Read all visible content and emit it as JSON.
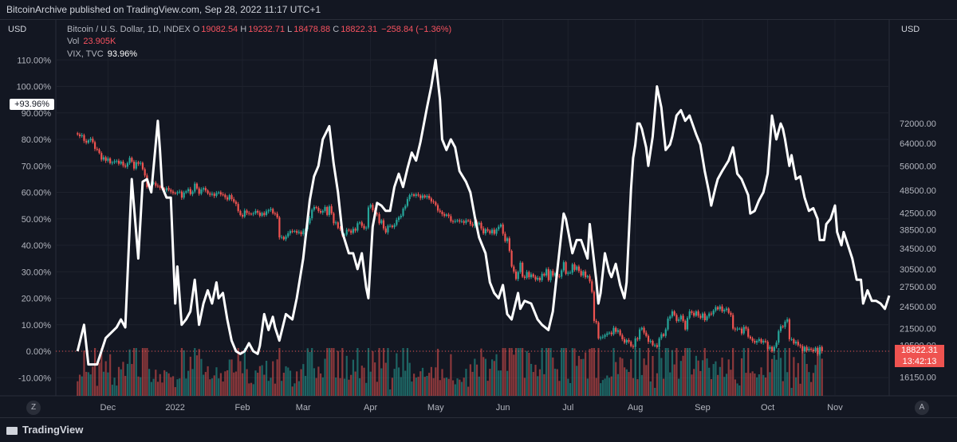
{
  "header": {
    "publisher_line": "BitcoinArchive published on TradingView.com, Sep 28, 2022 11:17 UTC+1"
  },
  "legend": {
    "symbol": "Bitcoin / U.S. Dollar, 1D, INDEX",
    "open_label": "O",
    "open": "19082.54",
    "high_label": "H",
    "high": "19232.71",
    "low_label": "L",
    "low": "18478.88",
    "close_label": "C",
    "close": "18822.31",
    "change": "−258.84 (−1.36%)",
    "vol_label": "Vol",
    "vol_value": "23.905K",
    "vix_label": "VIX, TVC",
    "vix_value": "93.96%"
  },
  "left_axis": {
    "currency": "USD",
    "vix_badge": "+93.96%"
  },
  "right_axis": {
    "currency": "USD",
    "price_badge": "18822.31",
    "countdown_badge": "13:42:13"
  },
  "footer": {
    "logo_text": "TradingView",
    "zoom_button": "Z",
    "auto_button": "A"
  },
  "colors": {
    "up": "#26a69a",
    "down": "#ef5350",
    "vix_line": "#ffffff",
    "background": "#131722",
    "grid": "#1e222d"
  },
  "chart_data": [
    {
      "type": "line",
      "name": "VIX, TVC",
      "note": "percent change line (left axis)",
      "ylim": [
        -15,
        120
      ],
      "y_ticks": [
        "110.00%",
        "100.00%",
        "90.00%",
        "80.00%",
        "70.00%",
        "60.00%",
        "50.00%",
        "40.00%",
        "30.00%",
        "20.00%",
        "10.00%",
        "0.00%",
        "-10.00%"
      ],
      "x_ticks": [
        "Dec",
        "2022",
        "Feb",
        "Mar",
        "Apr",
        "May",
        "Jun",
        "Jul",
        "Aug",
        "Sep",
        "Oct",
        "Nov"
      ],
      "x_tick_days": [
        14,
        45,
        76,
        104,
        135,
        165,
        196,
        226,
        257,
        288,
        318,
        349
      ],
      "x_range_days": [
        -10,
        374
      ],
      "points": [
        [
          0,
          0
        ],
        [
          3,
          10
        ],
        [
          5,
          -5
        ],
        [
          9,
          -5
        ],
        [
          13,
          5
        ],
        [
          18,
          9
        ],
        [
          20,
          12
        ],
        [
          22,
          9
        ],
        [
          25,
          65
        ],
        [
          28,
          35
        ],
        [
          30,
          64
        ],
        [
          32,
          65
        ],
        [
          34,
          60
        ],
        [
          36,
          78
        ],
        [
          37,
          87
        ],
        [
          38,
          76
        ],
        [
          39,
          62
        ],
        [
          41,
          58
        ],
        [
          43,
          58
        ],
        [
          45,
          18
        ],
        [
          46,
          32
        ],
        [
          48,
          10
        ],
        [
          50,
          12
        ],
        [
          52,
          15
        ],
        [
          54,
          27
        ],
        [
          56,
          10
        ],
        [
          58,
          18
        ],
        [
          60,
          23
        ],
        [
          62,
          18
        ],
        [
          64,
          26
        ],
        [
          65,
          20
        ],
        [
          67,
          22
        ],
        [
          69,
          12
        ],
        [
          71,
          4
        ],
        [
          73,
          0
        ],
        [
          75,
          -1
        ],
        [
          77,
          0
        ],
        [
          79,
          3
        ],
        [
          81,
          0
        ],
        [
          83,
          -1
        ],
        [
          84,
          2
        ],
        [
          86,
          14
        ],
        [
          88,
          8
        ],
        [
          90,
          13
        ],
        [
          91,
          9
        ],
        [
          93,
          4
        ],
        [
          96,
          14
        ],
        [
          99,
          12
        ],
        [
          101,
          20
        ],
        [
          104,
          35
        ],
        [
          107,
          57
        ],
        [
          109,
          66
        ],
        [
          111,
          70
        ],
        [
          113,
          80
        ],
        [
          116,
          85
        ],
        [
          118,
          71
        ],
        [
          120,
          60
        ],
        [
          122,
          45
        ],
        [
          125,
          37
        ],
        [
          127,
          37
        ],
        [
          129,
          31
        ],
        [
          131,
          37
        ],
        [
          133,
          24
        ],
        [
          134,
          20
        ],
        [
          136,
          47
        ],
        [
          138,
          56
        ],
        [
          140,
          55
        ],
        [
          142,
          53
        ],
        [
          144,
          53
        ],
        [
          146,
          62
        ],
        [
          148,
          67
        ],
        [
          150,
          62
        ],
        [
          152,
          69
        ],
        [
          154,
          75
        ],
        [
          156,
          72
        ],
        [
          158,
          79
        ],
        [
          161,
          92
        ],
        [
          163,
          100
        ],
        [
          165,
          110
        ],
        [
          167,
          95
        ],
        [
          168,
          80
        ],
        [
          170,
          76
        ],
        [
          172,
          80
        ],
        [
          174,
          77
        ],
        [
          176,
          68
        ],
        [
          179,
          64
        ],
        [
          181,
          60
        ],
        [
          183,
          51
        ],
        [
          185,
          43
        ],
        [
          188,
          37
        ],
        [
          190,
          26
        ],
        [
          192,
          22
        ],
        [
          194,
          20
        ],
        [
          196,
          25
        ],
        [
          198,
          14
        ],
        [
          200,
          12
        ],
        [
          203,
          22
        ],
        [
          204,
          16
        ],
        [
          206,
          19
        ],
        [
          209,
          18
        ],
        [
          212,
          12
        ],
        [
          214,
          10
        ],
        [
          217,
          8
        ],
        [
          219,
          15
        ],
        [
          221,
          30
        ],
        [
          223,
          45
        ],
        [
          224,
          52
        ],
        [
          225,
          50
        ],
        [
          228,
          37
        ],
        [
          230,
          42
        ],
        [
          232,
          42
        ],
        [
          235,
          35
        ],
        [
          236,
          48
        ],
        [
          239,
          27
        ],
        [
          240,
          18
        ],
        [
          241,
          22
        ],
        [
          243,
          37
        ],
        [
          245,
          30
        ],
        [
          246,
          28
        ],
        [
          248,
          33
        ],
        [
          250,
          25
        ],
        [
          252,
          20
        ],
        [
          253,
          26
        ],
        [
          255,
          61
        ],
        [
          256,
          73
        ],
        [
          257,
          78
        ],
        [
          258,
          86
        ],
        [
          259,
          86
        ],
        [
          260,
          84
        ],
        [
          262,
          77
        ],
        [
          263,
          70
        ],
        [
          265,
          81
        ],
        [
          267,
          100
        ],
        [
          269,
          92
        ],
        [
          270,
          84
        ],
        [
          271,
          76
        ],
        [
          273,
          78
        ],
        [
          274,
          81
        ],
        [
          276,
          89
        ],
        [
          278,
          91
        ],
        [
          280,
          87
        ],
        [
          282,
          89
        ],
        [
          285,
          82
        ],
        [
          287,
          78
        ],
        [
          289,
          68
        ],
        [
          291,
          60
        ],
        [
          292,
          55
        ],
        [
          294,
          62
        ],
        [
          295,
          65
        ],
        [
          297,
          68
        ],
        [
          300,
          72
        ],
        [
          302,
          77
        ],
        [
          304,
          67
        ],
        [
          306,
          65
        ],
        [
          309,
          59
        ],
        [
          310,
          52
        ],
        [
          312,
          53
        ],
        [
          314,
          57
        ],
        [
          316,
          60
        ],
        [
          318,
          67
        ],
        [
          320,
          89
        ],
        [
          322,
          80
        ],
        [
          324,
          86
        ],
        [
          325,
          84
        ],
        [
          326,
          80
        ],
        [
          328,
          70
        ],
        [
          329,
          74
        ],
        [
          331,
          65
        ],
        [
          333,
          66
        ],
        [
          335,
          58
        ],
        [
          337,
          53
        ],
        [
          339,
          54
        ],
        [
          341,
          50
        ],
        [
          342,
          42
        ],
        [
          344,
          42
        ],
        [
          345,
          48
        ],
        [
          347,
          50
        ],
        [
          349,
          55
        ],
        [
          350,
          45
        ],
        [
          352,
          40
        ],
        [
          353,
          45
        ],
        [
          355,
          40
        ],
        [
          357,
          35
        ],
        [
          359,
          27
        ],
        [
          361,
          27
        ],
        [
          362,
          18
        ],
        [
          364,
          23
        ],
        [
          366,
          19
        ],
        [
          368,
          19
        ],
        [
          370,
          18
        ],
        [
          372,
          16
        ],
        [
          374,
          21
        ]
      ],
      "end_value_label": "+93.96%"
    },
    {
      "type": "candlestick",
      "name": "Bitcoin / U.S. Dollar, 1D, INDEX",
      "note": "price candles (right axis, USD); approximate daily closes",
      "ylim": [
        14500,
        78000
      ],
      "y_ticks": [
        "72000.00",
        "64000.00",
        "56000.00",
        "48500.00",
        "42500.00",
        "38500.00",
        "34500.00",
        "30500.00",
        "27500.00",
        "24500.00",
        "21500.00",
        "19500.00",
        "16150.00"
      ],
      "start_open": 68000,
      "closes": [
        67500,
        66800,
        67200,
        65000,
        64300,
        65200,
        65800,
        64500,
        62000,
        61800,
        60500,
        58200,
        59000,
        57800,
        58600,
        57000,
        57200,
        57600,
        57800,
        56800,
        57500,
        56200,
        55800,
        57000,
        58800,
        57500,
        55200,
        57300,
        56800,
        57100,
        55000,
        53000,
        49500,
        50200,
        50500,
        50800,
        49900,
        49700,
        49300,
        49100,
        48500,
        49200,
        48700,
        48200,
        47800,
        47700,
        48000,
        48200,
        46500,
        47900,
        48300,
        48900,
        47500,
        48200,
        50500,
        49100,
        47600,
        48800,
        49200,
        48500,
        47700,
        47300,
        47600,
        47000,
        47800,
        48000,
        47400,
        47300,
        46600,
        46000,
        47200,
        46100,
        45400,
        44800,
        43000,
        42000,
        41600,
        43100,
        42500,
        42300,
        42200,
        42400,
        43000,
        42600,
        41800,
        42500,
        42000,
        42900,
        43200,
        43500,
        42400,
        42300,
        41400,
        36800,
        36900,
        36400,
        37000,
        37700,
        38200,
        38100,
        38200,
        37800,
        38000,
        37500,
        38300,
        38600,
        40000,
        41200,
        43300,
        44000,
        43800,
        43000,
        42600,
        43000,
        44000,
        42000,
        44200,
        42400,
        40000,
        40200,
        38900,
        38700,
        37200,
        37400,
        38500,
        38300,
        37800,
        38700,
        38300,
        40000,
        40200,
        39400,
        38800,
        39000,
        43900,
        44600,
        43200,
        42400,
        42200,
        40000,
        40700,
        38800,
        37900,
        39400,
        39400,
        39100,
        39600,
        40800,
        41400,
        41800,
        43600,
        44300,
        46100,
        47200,
        47400,
        47000,
        47400,
        47100,
        46400,
        47100,
        46600,
        47000,
        46300,
        45500,
        45300,
        44500,
        43100,
        42800,
        42200,
        41800,
        42100,
        41700,
        40500,
        40400,
        40500,
        40700,
        40400,
        40500,
        40100,
        40700,
        40600,
        39800,
        39400,
        40400,
        39700,
        40100,
        38800,
        37700,
        38600,
        38300,
        37700,
        38500,
        37600,
        38600,
        39200,
        39700,
        37600,
        36000,
        36600,
        34000,
        31000,
        30100,
        28800,
        30000,
        31700,
        29200,
        29000,
        30000,
        29100,
        29600,
        29200,
        28700,
        29000,
        28600,
        29700,
        29400,
        30500,
        28600,
        30200,
        29400,
        29800,
        29300,
        29200,
        30300,
        31800,
        29700,
        29900,
        29900,
        31400,
        30400,
        31000,
        30200,
        29400,
        30100,
        29100,
        29300,
        28400,
        26700,
        22500,
        22300,
        20300,
        20400,
        20500,
        20700,
        20900,
        21000,
        20800,
        21600,
        21100,
        21300,
        20700,
        20200,
        19800,
        20100,
        19900,
        19400,
        19300,
        20300,
        20200,
        21400,
        21600,
        21000,
        20600,
        19900,
        20000,
        19500,
        19500,
        19300,
        20300,
        20800,
        20600,
        21400,
        22800,
        23100,
        23800,
        23300,
        22500,
        22700,
        23200,
        22500,
        21400,
        22900,
        23800,
        23600,
        23200,
        23800,
        23200,
        22900,
        23500,
        22600,
        23100,
        23500,
        23400,
        23900,
        24400,
        24100,
        24500,
        23800,
        24000,
        24200,
        23600,
        23300,
        21500,
        21400,
        21500,
        21500,
        20900,
        21700,
        21500,
        20500,
        20300,
        20000,
        19800,
        20000,
        20200,
        19800,
        20000,
        19900,
        19100,
        19300,
        18800,
        19300,
        19800,
        21200,
        21800,
        21700,
        22400,
        22700,
        20200,
        20200,
        19700,
        19900,
        19500,
        19400,
        18800,
        19300,
        18900,
        19100,
        19000,
        18800,
        19200,
        18500,
        19300,
        18822
      ],
      "last_price": "18822.31"
    },
    {
      "type": "bar",
      "name": "Vol",
      "note": "volume histogram (relative heights, 0-1)",
      "last_value": "23.905K"
    }
  ]
}
